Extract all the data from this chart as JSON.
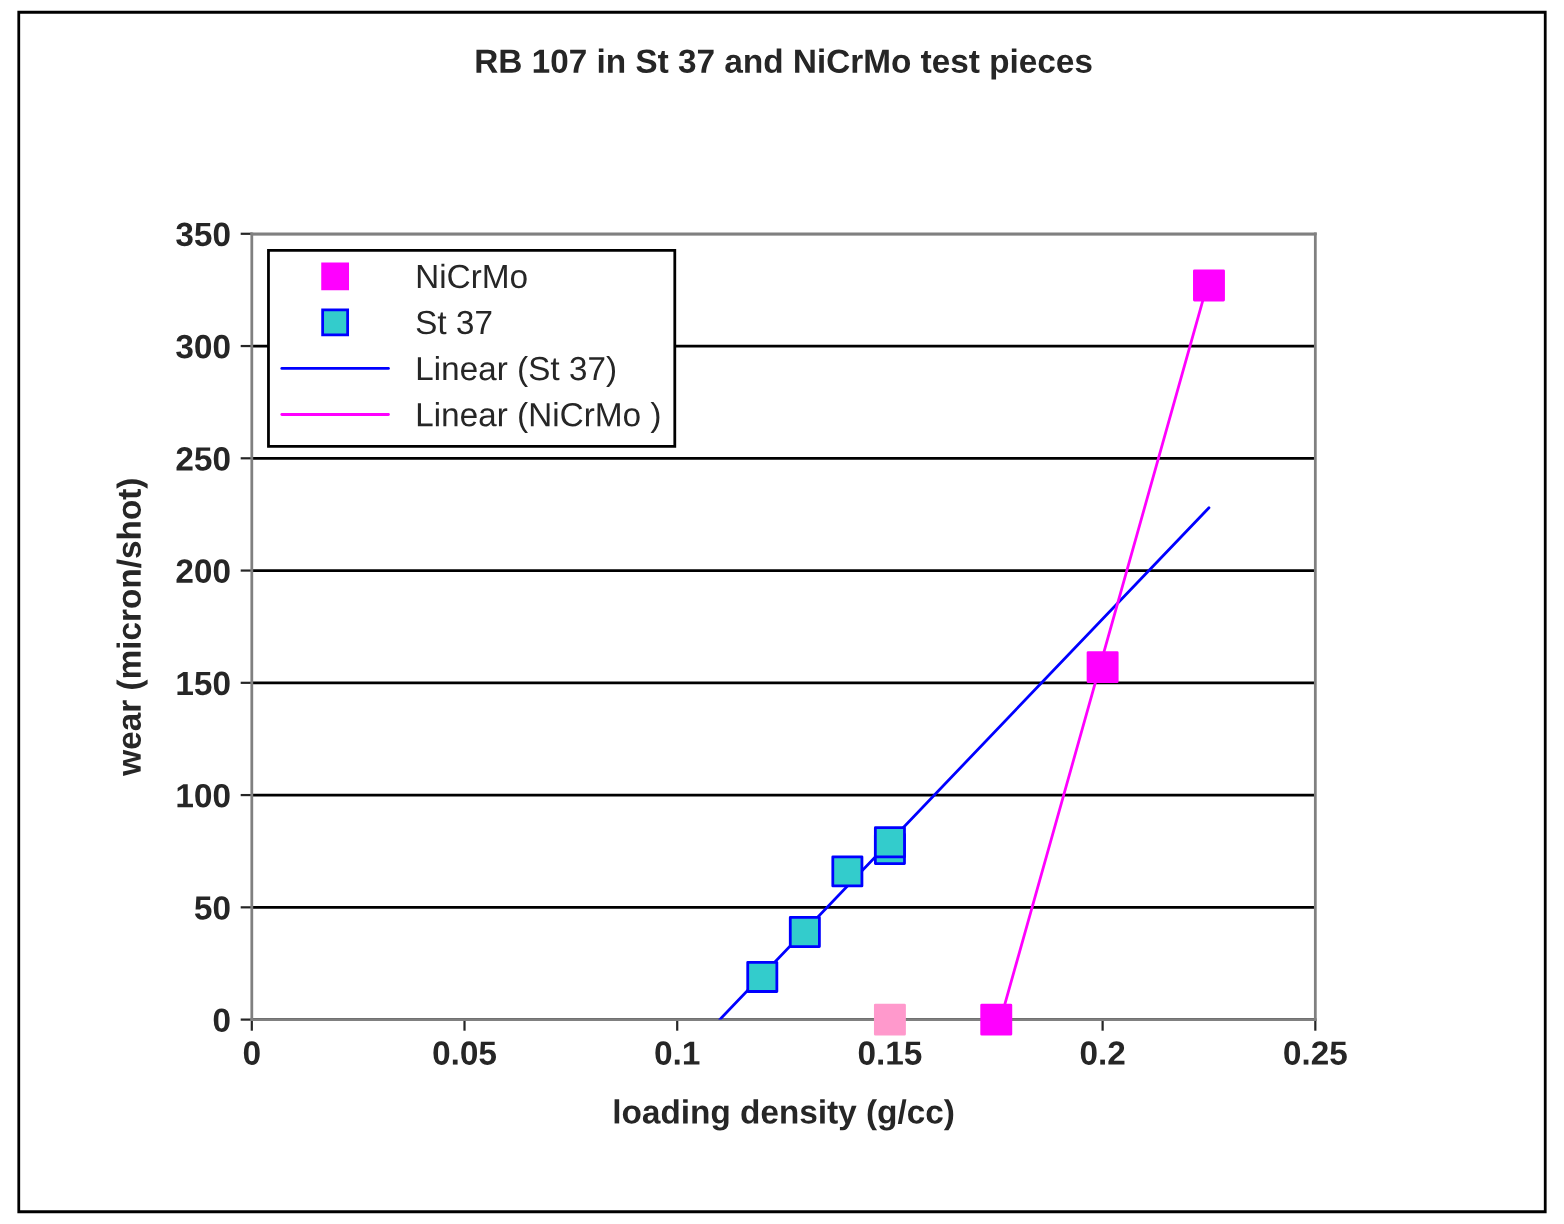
{
  "chart_data": {
    "type": "scatter",
    "title": "RB 107 in St 37 and NiCrMo test pieces",
    "xlabel": "loading density (g/cc)",
    "ylabel": "wear (micron/shot)",
    "xlim": [
      0,
      0.25
    ],
    "xticks": [
      0,
      0.05,
      0.1,
      0.15,
      0.2,
      0.25
    ],
    "ylim": [
      0,
      350
    ],
    "yticks": [
      0,
      50,
      100,
      150,
      200,
      250,
      300,
      350
    ],
    "grid": "y",
    "legend": "top left",
    "series": [
      {
        "name": "NiCrMo",
        "marker": "square",
        "color": "#ff00ff",
        "colors": [
          "#ff99cc",
          "#ff00ff",
          "#ff00ff",
          "#ff00ff"
        ],
        "x": [
          0.15,
          0.175,
          0.2,
          0.225
        ],
        "values": [
          0,
          0,
          157,
          327
        ]
      },
      {
        "name": "St 37",
        "marker": "square",
        "color": "#33cccc",
        "x": [
          0.12,
          0.13,
          0.14,
          0.15,
          0.15
        ],
        "values": [
          19,
          39,
          66,
          76,
          79
        ]
      },
      {
        "name": "Linear (St 37)",
        "type": "line",
        "color": "#0000ff",
        "x": [
          0.11,
          0.225
        ],
        "values": [
          0,
          228
        ]
      },
      {
        "name": "Linear (NiCrMo )",
        "type": "line",
        "color": "#ff00ff",
        "x": [
          0.176,
          0.225
        ],
        "values": [
          0,
          330
        ]
      }
    ]
  }
}
